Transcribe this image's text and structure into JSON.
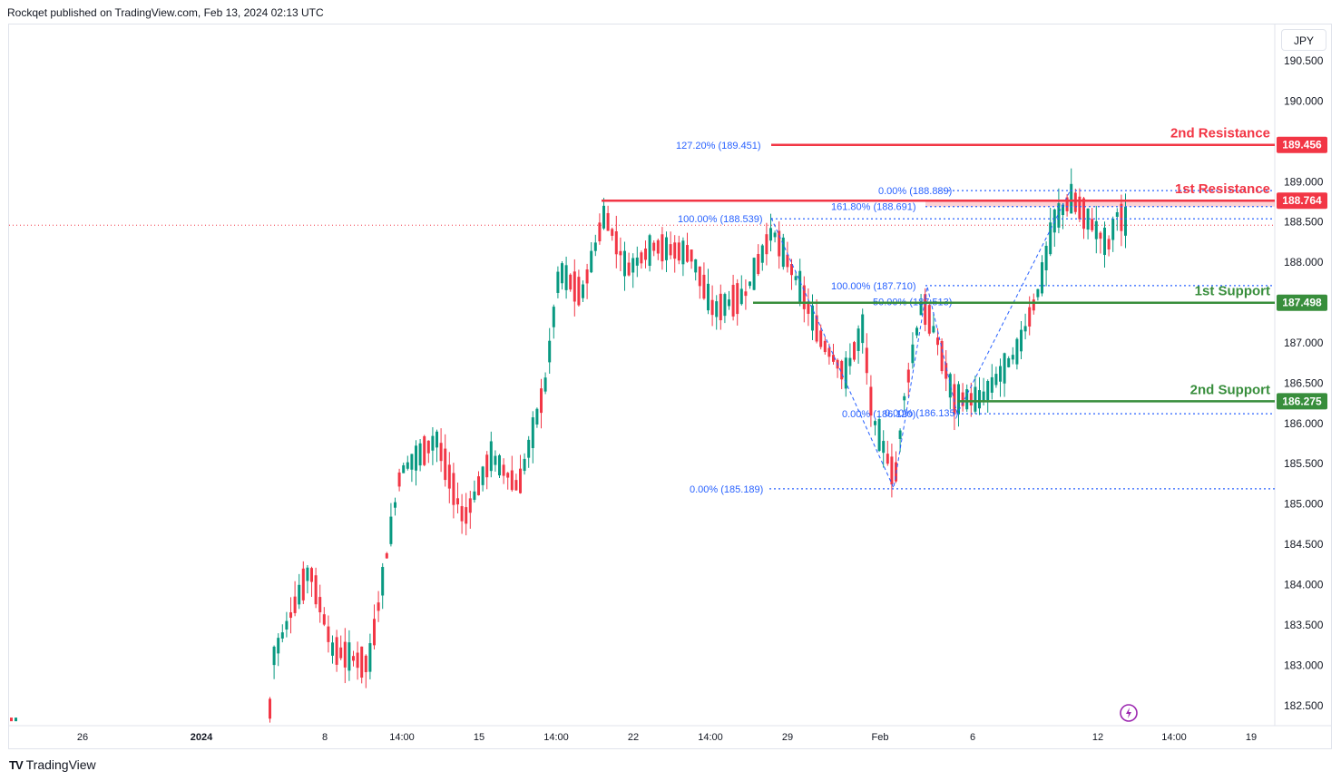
{
  "header": {
    "text": "Rockqet published on TradingView.com, Feb 13, 2024 02:13 UTC"
  },
  "currency": "JPY",
  "footer": {
    "brand": "TradingView",
    "logo": "tradingview-logo"
  },
  "colors": {
    "up": "#089981",
    "down": "#f23645",
    "resistance": "#f23645",
    "support": "#388e3c",
    "fib": "#2962ff",
    "grid": "#ffffff",
    "axis_text": "#131722"
  },
  "chart_data": {
    "type": "candlestick",
    "ylim": [
      182.25,
      190.95
    ],
    "y_ticks": [
      "182.500",
      "183.000",
      "183.500",
      "184.000",
      "184.500",
      "185.000",
      "185.500",
      "186.000",
      "186.500",
      "187.000",
      "187.500",
      "188.000",
      "188.500",
      "189.000",
      "189.500",
      "190.000",
      "190.500"
    ],
    "x_ticks": [
      "26",
      "2024",
      "8",
      "14:00",
      "15",
      "14:00",
      "22",
      "14:00",
      "29",
      "Feb",
      "6",
      "12",
      "14:00",
      "19"
    ],
    "levels": [
      {
        "label": "2nd Resistance",
        "value": "189.456",
        "price": 189.456,
        "kind": "resistance"
      },
      {
        "label": "1st Resistance",
        "value": "188.764",
        "price": 188.764,
        "kind": "resistance"
      },
      {
        "label": "1st Support",
        "value": "187.498",
        "price": 187.498,
        "kind": "support"
      },
      {
        "label": "2nd Support",
        "value": "186.275",
        "price": 186.275,
        "kind": "support"
      }
    ],
    "resistance_zone": [
      188.691,
      188.764
    ],
    "current_price": 188.46,
    "fib_labels": [
      {
        "text": "127.20% (189.451)",
        "price": 189.451
      },
      {
        "text": "0.00% (188.889)",
        "price": 188.889
      },
      {
        "text": "161.80% (188.691)",
        "price": 188.691
      },
      {
        "text": "100.00% (188.539)",
        "price": 188.539
      },
      {
        "text": "100.00% (187.710)",
        "price": 187.71
      },
      {
        "text": "50.00% (187.513)",
        "price": 187.513
      },
      {
        "text": "0.00% (186.120)",
        "price": 186.12
      },
      {
        "text": "0.00% (186.135)",
        "price": 186.135
      },
      {
        "text": "0.00% (185.189)",
        "price": 185.189
      }
    ],
    "path_points": [
      [
        188.2,
        188.4
      ],
      [
        188.0,
        188.55
      ],
      [
        187.6,
        187.55
      ],
      [
        187.3,
        186.5
      ],
      [
        186.8,
        186.0
      ],
      [
        186.4,
        185.2
      ],
      [
        185.9,
        185.5
      ],
      [
        186.3,
        186.7
      ],
      [
        186.6,
        187.4
      ],
      [
        187.2,
        187.7
      ]
    ]
  }
}
